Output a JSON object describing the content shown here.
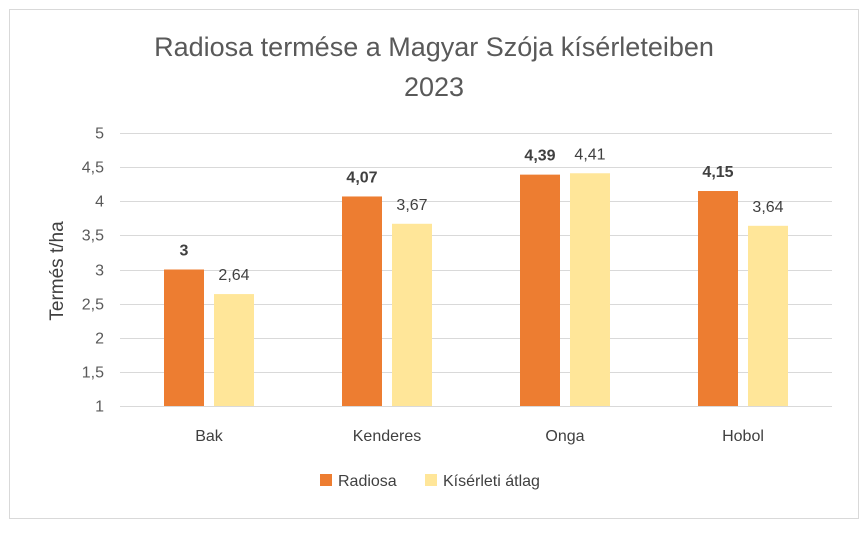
{
  "chart_data": {
    "type": "bar",
    "title": [
      "Radiosa termése a Magyar Szója kísérleteiben",
      "2023"
    ],
    "xlabel": "",
    "ylabel": "Termés t/ha",
    "ylim": [
      1,
      5
    ],
    "yticks": [
      1,
      1.5,
      2,
      2.5,
      3,
      3.5,
      4,
      4.5,
      5
    ],
    "ytick_labels": [
      "1",
      "1,5",
      "2",
      "2,5",
      "3",
      "3,5",
      "4",
      "4,5",
      "5"
    ],
    "grid": true,
    "legend_position": "bottom",
    "categories": [
      "Bak",
      "Kenderes",
      "Onga",
      "Hobol"
    ],
    "series": [
      {
        "name": "Radiosa",
        "color": "#ed7d31",
        "values": [
          3,
          4.07,
          4.39,
          4.15
        ],
        "labels": [
          "3",
          "4,07",
          "4,39",
          "4,15"
        ],
        "label_bold": true
      },
      {
        "name": "Kísérleti átlag",
        "color": "#ffe699",
        "values": [
          2.64,
          3.67,
          4.41,
          3.64
        ],
        "labels": [
          "2,64",
          "3,67",
          "4,41",
          "3,64"
        ],
        "label_bold": false
      }
    ]
  }
}
